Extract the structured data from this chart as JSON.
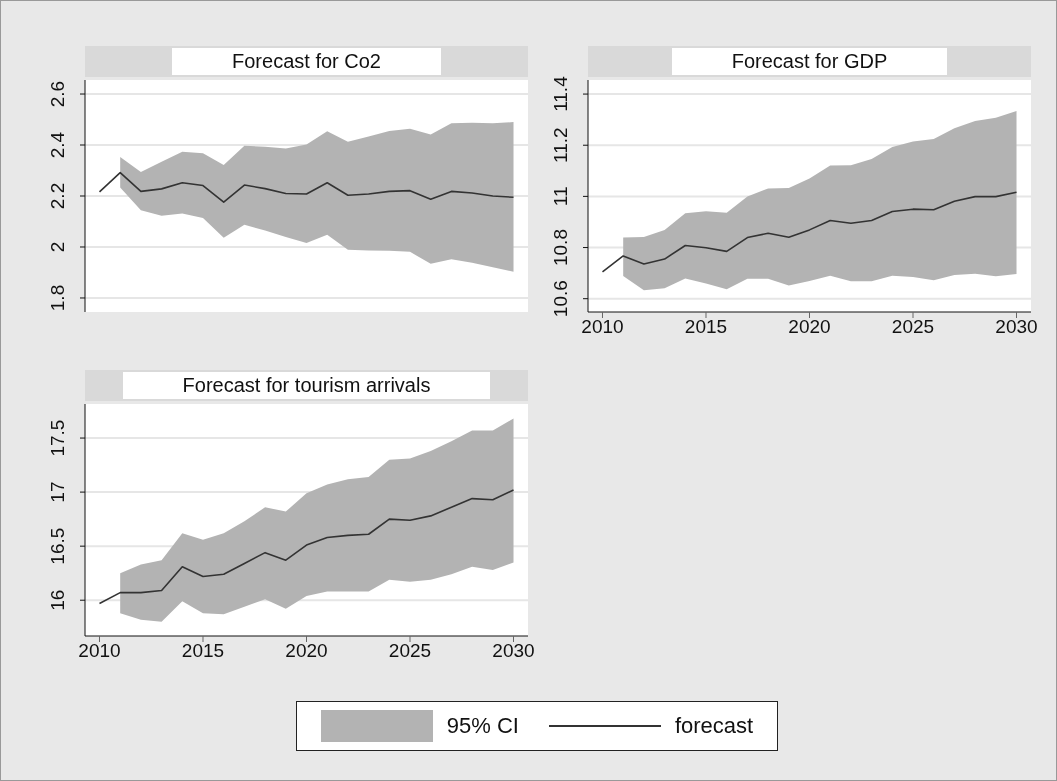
{
  "chart_data": [
    {
      "type": "line",
      "title": "Forecast for Co2",
      "x": [
        2010,
        2011,
        2012,
        2013,
        2014,
        2015,
        2016,
        2017,
        2018,
        2019,
        2020,
        2021,
        2022,
        2023,
        2024,
        2025,
        2026,
        2027,
        2028,
        2029,
        2030
      ],
      "xlim": [
        2009.3,
        2030.7
      ],
      "ylim": [
        1.745,
        2.655
      ],
      "yticks": [
        1.8,
        2,
        2.2,
        2.4,
        2.6
      ],
      "tick_labels": "y",
      "grid": "y",
      "marker": "none",
      "line_style": "solid",
      "series": [
        {
          "color": "#333333",
          "values": [
            2.216,
            2.292,
            2.218,
            2.228,
            2.252,
            2.241,
            2.176,
            2.243,
            2.229,
            2.21,
            2.208,
            2.252,
            2.203,
            2.208,
            2.218,
            2.221,
            2.187,
            2.218,
            2.212,
            2.2,
            2.195
          ],
          "lower": [
            null,
            2.233,
            2.144,
            2.123,
            2.131,
            2.114,
            2.036,
            2.087,
            2.065,
            2.039,
            2.016,
            2.048,
            1.989,
            1.986,
            1.985,
            1.981,
            1.934,
            1.952,
            1.938,
            1.921,
            1.903
          ],
          "upper": [
            null,
            2.353,
            2.294,
            2.334,
            2.374,
            2.368,
            2.322,
            2.397,
            2.393,
            2.386,
            2.402,
            2.454,
            2.413,
            2.433,
            2.455,
            2.464,
            2.441,
            2.485,
            2.487,
            2.485,
            2.49
          ]
        }
      ]
    },
    {
      "type": "line",
      "title": "Forecast for GDP",
      "x": [
        2010,
        2011,
        2012,
        2013,
        2014,
        2015,
        2016,
        2017,
        2018,
        2019,
        2020,
        2021,
        2022,
        2023,
        2024,
        2025,
        2026,
        2027,
        2028,
        2029,
        2030
      ],
      "xlim": [
        2009.3,
        2030.7
      ],
      "xticks": [
        2010,
        2015,
        2020,
        2025,
        2030
      ],
      "ylim": [
        10.548,
        11.455
      ],
      "yticks": [
        10.6,
        10.8,
        11,
        11.2,
        11.4
      ],
      "grid": "y",
      "marker": "none",
      "line_style": "solid",
      "series": [
        {
          "color": "#333333",
          "values": [
            10.705,
            10.767,
            10.736,
            10.755,
            10.808,
            10.799,
            10.785,
            10.839,
            10.856,
            10.84,
            10.869,
            10.906,
            10.895,
            10.906,
            10.941,
            10.95,
            10.948,
            10.981,
            10.999,
            10.999,
            11.016
          ],
          "lower": [
            null,
            10.689,
            10.633,
            10.641,
            10.679,
            10.659,
            10.637,
            10.678,
            10.678,
            10.652,
            10.669,
            10.69,
            10.668,
            10.668,
            10.69,
            10.685,
            10.672,
            10.693,
            10.698,
            10.688,
            10.697
          ],
          "upper": [
            null,
            10.839,
            10.841,
            10.869,
            10.934,
            10.942,
            10.936,
            11.0,
            11.031,
            11.033,
            11.07,
            11.121,
            11.122,
            11.146,
            11.193,
            11.215,
            11.224,
            11.266,
            11.295,
            11.307,
            11.334
          ]
        }
      ]
    },
    {
      "type": "line",
      "title": "Forecast for tourism arrivals",
      "x": [
        2010,
        2011,
        2012,
        2013,
        2014,
        2015,
        2016,
        2017,
        2018,
        2019,
        2020,
        2021,
        2022,
        2023,
        2024,
        2025,
        2026,
        2027,
        2028,
        2029,
        2030
      ],
      "xlim": [
        2009.3,
        2030.7
      ],
      "xticks": [
        2010,
        2015,
        2020,
        2025,
        2030
      ],
      "ylim": [
        15.669,
        17.815
      ],
      "yticks": [
        16,
        16.5,
        17,
        17.5
      ],
      "grid": "y",
      "marker": "none",
      "line_style": "solid",
      "legend": "bottom",
      "annotations": [
        "95% CI"
      ],
      "series": [
        {
          "name": "forecast",
          "color": "#333333",
          "values": [
            15.97,
            16.07,
            16.07,
            16.09,
            16.31,
            16.22,
            16.24,
            16.34,
            16.44,
            16.37,
            16.51,
            16.58,
            16.6,
            16.61,
            16.75,
            16.74,
            16.78,
            16.86,
            16.94,
            16.93,
            17.02
          ],
          "lower": [
            null,
            15.88,
            15.82,
            15.8,
            15.99,
            15.88,
            15.87,
            15.94,
            16.01,
            15.92,
            16.04,
            16.08,
            16.08,
            16.08,
            16.19,
            16.17,
            16.19,
            16.24,
            16.31,
            16.28,
            16.35
          ],
          "upper": [
            null,
            16.25,
            16.33,
            16.37,
            16.62,
            16.56,
            16.62,
            16.73,
            16.86,
            16.82,
            16.99,
            17.07,
            17.12,
            17.14,
            17.3,
            17.31,
            17.38,
            17.47,
            17.57,
            17.57,
            17.68
          ]
        }
      ]
    }
  ]
}
